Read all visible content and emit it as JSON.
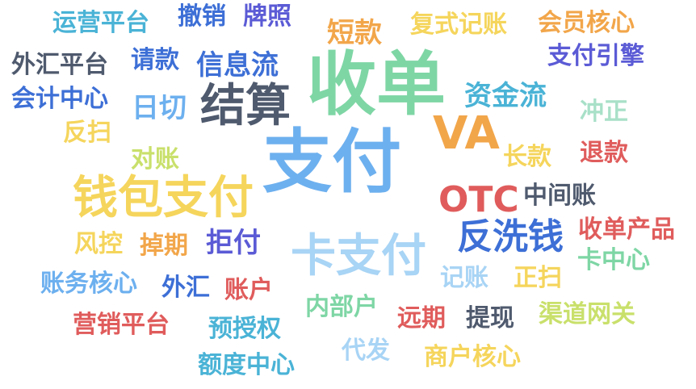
{
  "palette": {
    "blue_light": "#6db0ef",
    "green_mint": "#7ed6a5",
    "slate": "#4f5a6e",
    "yellow": "#f5d55c",
    "orange": "#f2a64a",
    "red": "#e05c5c",
    "indigo": "#5b5bd6",
    "royal": "#3d6fd6",
    "teal": "#4ab3d6",
    "pale_blue": "#a8d4f5",
    "lime": "#c9e06b"
  },
  "words": [
    {
      "text": "支付",
      "color": "#6db0ef"
    },
    {
      "text": "收单",
      "color": "#7ed6a5"
    },
    {
      "text": "结算",
      "color": "#4f5a6e"
    },
    {
      "text": "钱包支付",
      "color": "#f5d55c"
    },
    {
      "text": "卡支付",
      "color": "#a8d4f5"
    },
    {
      "text": "VA",
      "color": "#f2a64a"
    },
    {
      "text": "OTC",
      "color": "#e05c5c"
    },
    {
      "text": "反洗钱",
      "color": "#3d6fd6"
    },
    {
      "text": "资金流",
      "color": "#4ab3d6"
    },
    {
      "text": "信息流",
      "color": "#3d6fd6"
    },
    {
      "text": "拒付",
      "color": "#5b5bd6"
    },
    {
      "text": "中间账",
      "color": "#4f5a6e"
    },
    {
      "text": "收单产品",
      "color": "#e05c5c"
    },
    {
      "text": "短款",
      "color": "#f2a64a"
    },
    {
      "text": "复式记账",
      "color": "#f5d55c"
    },
    {
      "text": "会员核心",
      "color": "#f2a64a"
    },
    {
      "text": "支付引擎",
      "color": "#5b5bd6"
    },
    {
      "text": "运营平台",
      "color": "#4ab3d6"
    },
    {
      "text": "撤销",
      "color": "#3d6fd6"
    },
    {
      "text": "牌照",
      "color": "#5b5bd6"
    },
    {
      "text": "外汇平台",
      "color": "#4f5a6e"
    },
    {
      "text": "请款",
      "color": "#3d6fd6"
    },
    {
      "text": "会计中心",
      "color": "#3d6fd6"
    },
    {
      "text": "日切",
      "color": "#6db0ef"
    },
    {
      "text": "冲正",
      "color": "#a8e0c8"
    },
    {
      "text": "反扫",
      "color": "#f5d55c"
    },
    {
      "text": "对账",
      "color": "#c9e06b"
    },
    {
      "text": "长款",
      "color": "#f5d55c"
    },
    {
      "text": "退款",
      "color": "#e05c5c"
    },
    {
      "text": "风控",
      "color": "#f5d55c"
    },
    {
      "text": "掉期",
      "color": "#f2a64a"
    },
    {
      "text": "账务核心",
      "color": "#6db0ef"
    },
    {
      "text": "外汇",
      "color": "#3d6fd6"
    },
    {
      "text": "账户",
      "color": "#e05c5c"
    },
    {
      "text": "记账",
      "color": "#a8d4f5"
    },
    {
      "text": "正扫",
      "color": "#f5d55c"
    },
    {
      "text": "卡中心",
      "color": "#7ed6a5"
    },
    {
      "text": "内部户",
      "color": "#7ed6a5"
    },
    {
      "text": "远期",
      "color": "#e05c5c"
    },
    {
      "text": "提现",
      "color": "#4f5a6e"
    },
    {
      "text": "渠道网关",
      "color": "#c9e06b"
    },
    {
      "text": "营销平台",
      "color": "#e05c5c"
    },
    {
      "text": "预授权",
      "color": "#4ab3d6"
    },
    {
      "text": "代发",
      "color": "#a8d4f5"
    },
    {
      "text": "商户核心",
      "color": "#f5d55c"
    },
    {
      "text": "额度中心",
      "color": "#4ab3d6"
    }
  ]
}
